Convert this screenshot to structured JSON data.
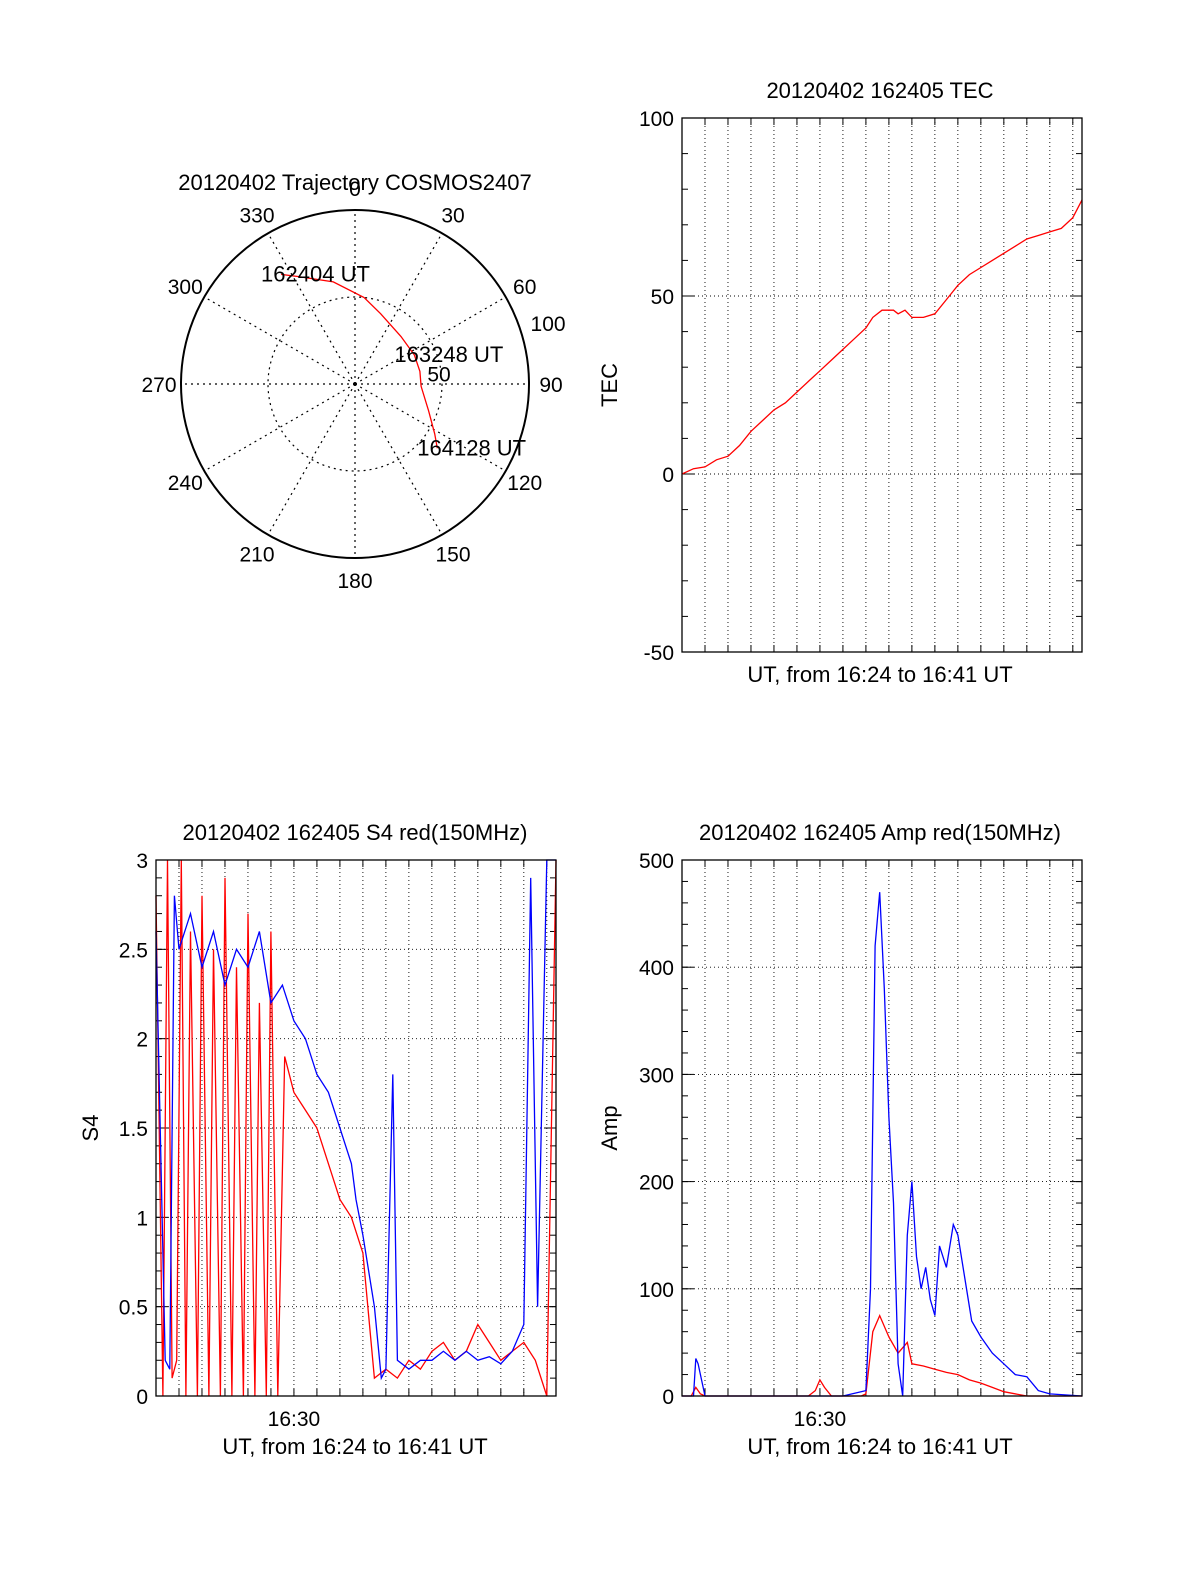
{
  "chart_data": [
    {
      "type": "polar",
      "title": "20120402 Trajectory COSMOS2407",
      "angle_labels": [
        "0",
        "30",
        "60",
        "90",
        "120",
        "150",
        "180",
        "210",
        "240",
        "270",
        "300",
        "330"
      ],
      "radius_labels": [
        "50",
        "100"
      ],
      "series": [
        {
          "color": "#ff0000",
          "points": [
            [
              -34,
              76
            ],
            [
              -28,
              70
            ],
            [
              -12,
              60
            ],
            [
              6,
              50
            ],
            [
              20,
              43
            ],
            [
              44,
              38
            ],
            [
              64,
              38
            ],
            [
              79,
              38
            ],
            [
              92,
              38
            ],
            [
              110,
              45
            ],
            [
              122,
              54
            ],
            [
              128,
              60
            ]
          ]
        }
      ],
      "annotations": [
        {
          "text": "162404 UT",
          "angle": -34,
          "radius": 76
        },
        {
          "text": "163248 UT",
          "angle": 64,
          "radius": 38
        },
        {
          "text": "164128 UT",
          "angle": 128,
          "radius": 60
        }
      ]
    },
    {
      "type": "line",
      "title": "20120402 162405 TEC",
      "xlabel": "UT, from 16:24 to 16:41 UT",
      "ylabel": "TEC",
      "xlim": [
        0,
        17.4
      ],
      "ylim": [
        -50,
        100
      ],
      "yticks": [
        "-50",
        "0",
        "50",
        "100"
      ],
      "grid": true,
      "series": [
        {
          "color": "#ff0000",
          "x": [
            0,
            0.5,
            1,
            1.5,
            2,
            2.5,
            3,
            3.5,
            4,
            4.5,
            5,
            5.5,
            6,
            6.5,
            7,
            7.5,
            8,
            8.3,
            8.7,
            9,
            9.2,
            9.4,
            9.7,
            10,
            10.5,
            11,
            11.5,
            12,
            12.5,
            13,
            13.5,
            14,
            14.5,
            15,
            15.5,
            16,
            16.5,
            17,
            17.4
          ],
          "values": [
            0,
            1.5,
            2,
            4,
            5,
            8,
            12,
            15,
            18,
            20,
            23,
            26,
            29,
            32,
            35,
            38,
            41,
            44,
            46,
            46,
            46,
            45,
            46,
            44,
            44,
            45,
            49,
            53,
            56,
            58,
            60,
            62,
            64,
            66,
            67,
            68,
            69,
            72,
            77
          ]
        }
      ]
    },
    {
      "type": "line",
      "title": "20120402 162405 S4 red(150MHz)",
      "xlabel": "UT, from 16:24 to 16:41 UT",
      "ylabel": "S4",
      "xlim": [
        0,
        17.4
      ],
      "ylim": [
        0,
        3
      ],
      "yticks": [
        "0",
        "0.5",
        "1",
        "1.5",
        "2",
        "2.5",
        "3"
      ],
      "xticks": [
        {
          "value": 6,
          "label": "16:30"
        }
      ],
      "grid": true,
      "series": [
        {
          "color": "#ff0000",
          "x": [
            0,
            0.3,
            0.5,
            0.7,
            0.9,
            1.1,
            1.3,
            1.5,
            1.8,
            2.0,
            2.3,
            2.5,
            2.8,
            3.0,
            3.3,
            3.5,
            3.8,
            4.0,
            4.3,
            4.5,
            4.8,
            5.0,
            5.3,
            5.6,
            6.0,
            6.5,
            7.0,
            7.5,
            8.0,
            8.5,
            9.0,
            9.5,
            10.0,
            10.5,
            11.0,
            11.5,
            12.0,
            12.5,
            13.0,
            13.5,
            14.0,
            14.5,
            15.0,
            15.5,
            16.0,
            16.5,
            17.0,
            17.4
          ],
          "values": [
            2.8,
            0,
            3,
            0.1,
            0.2,
            3,
            0,
            2.6,
            0,
            2.8,
            0,
            2.5,
            0,
            2.9,
            0,
            2.4,
            0,
            2.7,
            0,
            2.2,
            0,
            2.6,
            0,
            1.9,
            1.7,
            1.6,
            1.5,
            1.3,
            1.1,
            1.0,
            0.8,
            0.1,
            0.15,
            0.1,
            0.2,
            0.15,
            0.25,
            0.3,
            0.2,
            0.25,
            0.4,
            0.3,
            0.2,
            0.25,
            0.3,
            0.2,
            0,
            3
          ]
        },
        {
          "color": "#0000ff",
          "x": [
            0,
            0.4,
            0.6,
            0.8,
            1.0,
            1.5,
            2.0,
            2.5,
            3.0,
            3.5,
            4.0,
            4.5,
            5.0,
            5.5,
            6.0,
            6.5,
            7.0,
            7.5,
            8.0,
            8.5,
            8.7,
            9.0,
            9.5,
            9.8,
            10.0,
            10.3,
            10.5,
            11.0,
            11.5,
            12.0,
            12.5,
            13.0,
            13.5,
            14.0,
            14.5,
            15.0,
            15.5,
            16.0,
            16.3,
            16.6,
            17.0,
            17.4
          ],
          "values": [
            2.6,
            0.2,
            0.15,
            2.8,
            2.5,
            2.7,
            2.4,
            2.6,
            2.3,
            2.5,
            2.4,
            2.6,
            2.2,
            2.3,
            2.1,
            2.0,
            1.8,
            1.7,
            1.5,
            1.3,
            1.1,
            0.9,
            0.5,
            0.1,
            0.15,
            1.8,
            0.2,
            0.15,
            0.2,
            0.2,
            0.25,
            0.2,
            0.25,
            0.2,
            0.22,
            0.18,
            0.25,
            0.4,
            2.9,
            0.5,
            3,
            3
          ]
        }
      ]
    },
    {
      "type": "line",
      "title": "20120402 162405 Amp red(150MHz)",
      "xlabel": "UT, from 16:24 to 16:41 UT",
      "ylabel": "Amp",
      "xlim": [
        0,
        17.4
      ],
      "ylim": [
        0,
        500
      ],
      "yticks": [
        "0",
        "100",
        "200",
        "300",
        "400",
        "500"
      ],
      "xticks": [
        {
          "value": 6,
          "label": "16:30"
        }
      ],
      "grid": true,
      "series": [
        {
          "color": "#ff0000",
          "x": [
            0,
            0.4,
            0.6,
            0.8,
            1.0,
            3.0,
            5.5,
            5.8,
            6.0,
            6.2,
            6.5,
            7.8,
            8.0,
            8.3,
            8.6,
            9.0,
            9.4,
            9.8,
            10.0,
            10.5,
            11.0,
            11.5,
            12.0,
            12.5,
            13.0,
            13.5,
            14.0,
            15.0,
            17.4
          ],
          "values": [
            0,
            0,
            8,
            2,
            0,
            0,
            0,
            5,
            15,
            8,
            0,
            0,
            2,
            60,
            75,
            55,
            40,
            50,
            30,
            28,
            25,
            22,
            20,
            15,
            12,
            8,
            4,
            0,
            0
          ]
        },
        {
          "color": "#0000ff",
          "x": [
            0,
            0.5,
            0.6,
            0.7,
            0.9,
            1.0,
            1.5,
            3.0,
            7.0,
            8.0,
            8.2,
            8.4,
            8.6,
            8.8,
            9.0,
            9.2,
            9.4,
            9.6,
            9.8,
            10.0,
            10.2,
            10.4,
            10.6,
            10.8,
            11.0,
            11.2,
            11.5,
            11.8,
            12.0,
            12.3,
            12.6,
            13.0,
            13.5,
            14.0,
            14.5,
            15.0,
            15.5,
            16.0,
            17.4
          ],
          "values": [
            0,
            0,
            35,
            30,
            10,
            0,
            0,
            0,
            0,
            5,
            100,
            420,
            470,
            380,
            260,
            180,
            30,
            0,
            150,
            200,
            130,
            100,
            120,
            90,
            75,
            140,
            120,
            160,
            150,
            110,
            70,
            55,
            40,
            30,
            20,
            18,
            5,
            2,
            0
          ]
        }
      ]
    }
  ]
}
